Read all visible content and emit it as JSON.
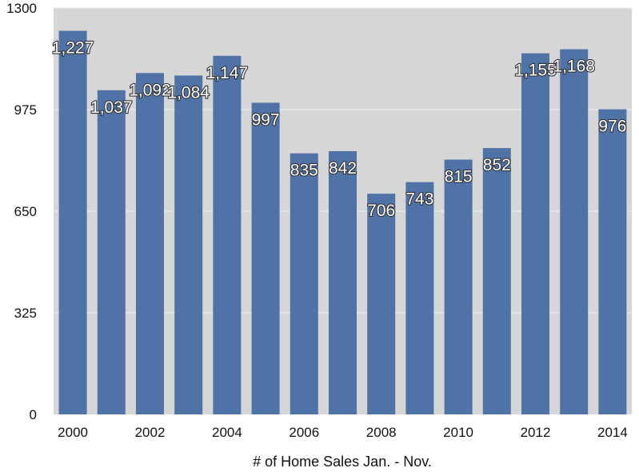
{
  "chart_data": {
    "type": "bar",
    "title": "",
    "xlabel": "# of Home Sales Jan. - Nov.",
    "ylabel": "",
    "ylim": [
      0,
      1300
    ],
    "yticks": [
      "0",
      "325",
      "650",
      "975",
      "1300"
    ],
    "ytick_values": [
      0,
      325,
      650,
      975,
      1300
    ],
    "categories": [
      "2000",
      "2001",
      "2002",
      "2003",
      "2004",
      "2005",
      "2006",
      "2007",
      "2008",
      "2009",
      "2010",
      "2011",
      "2012",
      "2013",
      "2014"
    ],
    "xtick_labels": [
      "2000",
      "",
      "2002",
      "",
      "2004",
      "",
      "2006",
      "",
      "2008",
      "",
      "2010",
      "",
      "2012",
      "",
      "2014"
    ],
    "values": [
      1227,
      1037,
      1092,
      1084,
      1147,
      997,
      835,
      842,
      706,
      743,
      815,
      852,
      1155,
      1168,
      976
    ],
    "value_labels": [
      "1,227",
      "1,037",
      "1,092",
      "1,084",
      "1,147",
      "997",
      "835",
      "842",
      "706",
      "743",
      "815",
      "852",
      "1,155",
      "1,168",
      "976"
    ],
    "grid": true,
    "colors": {
      "bar": "#4f73a6",
      "plot_bg": "#d6d6d6",
      "grid": "#eeeeee"
    }
  }
}
